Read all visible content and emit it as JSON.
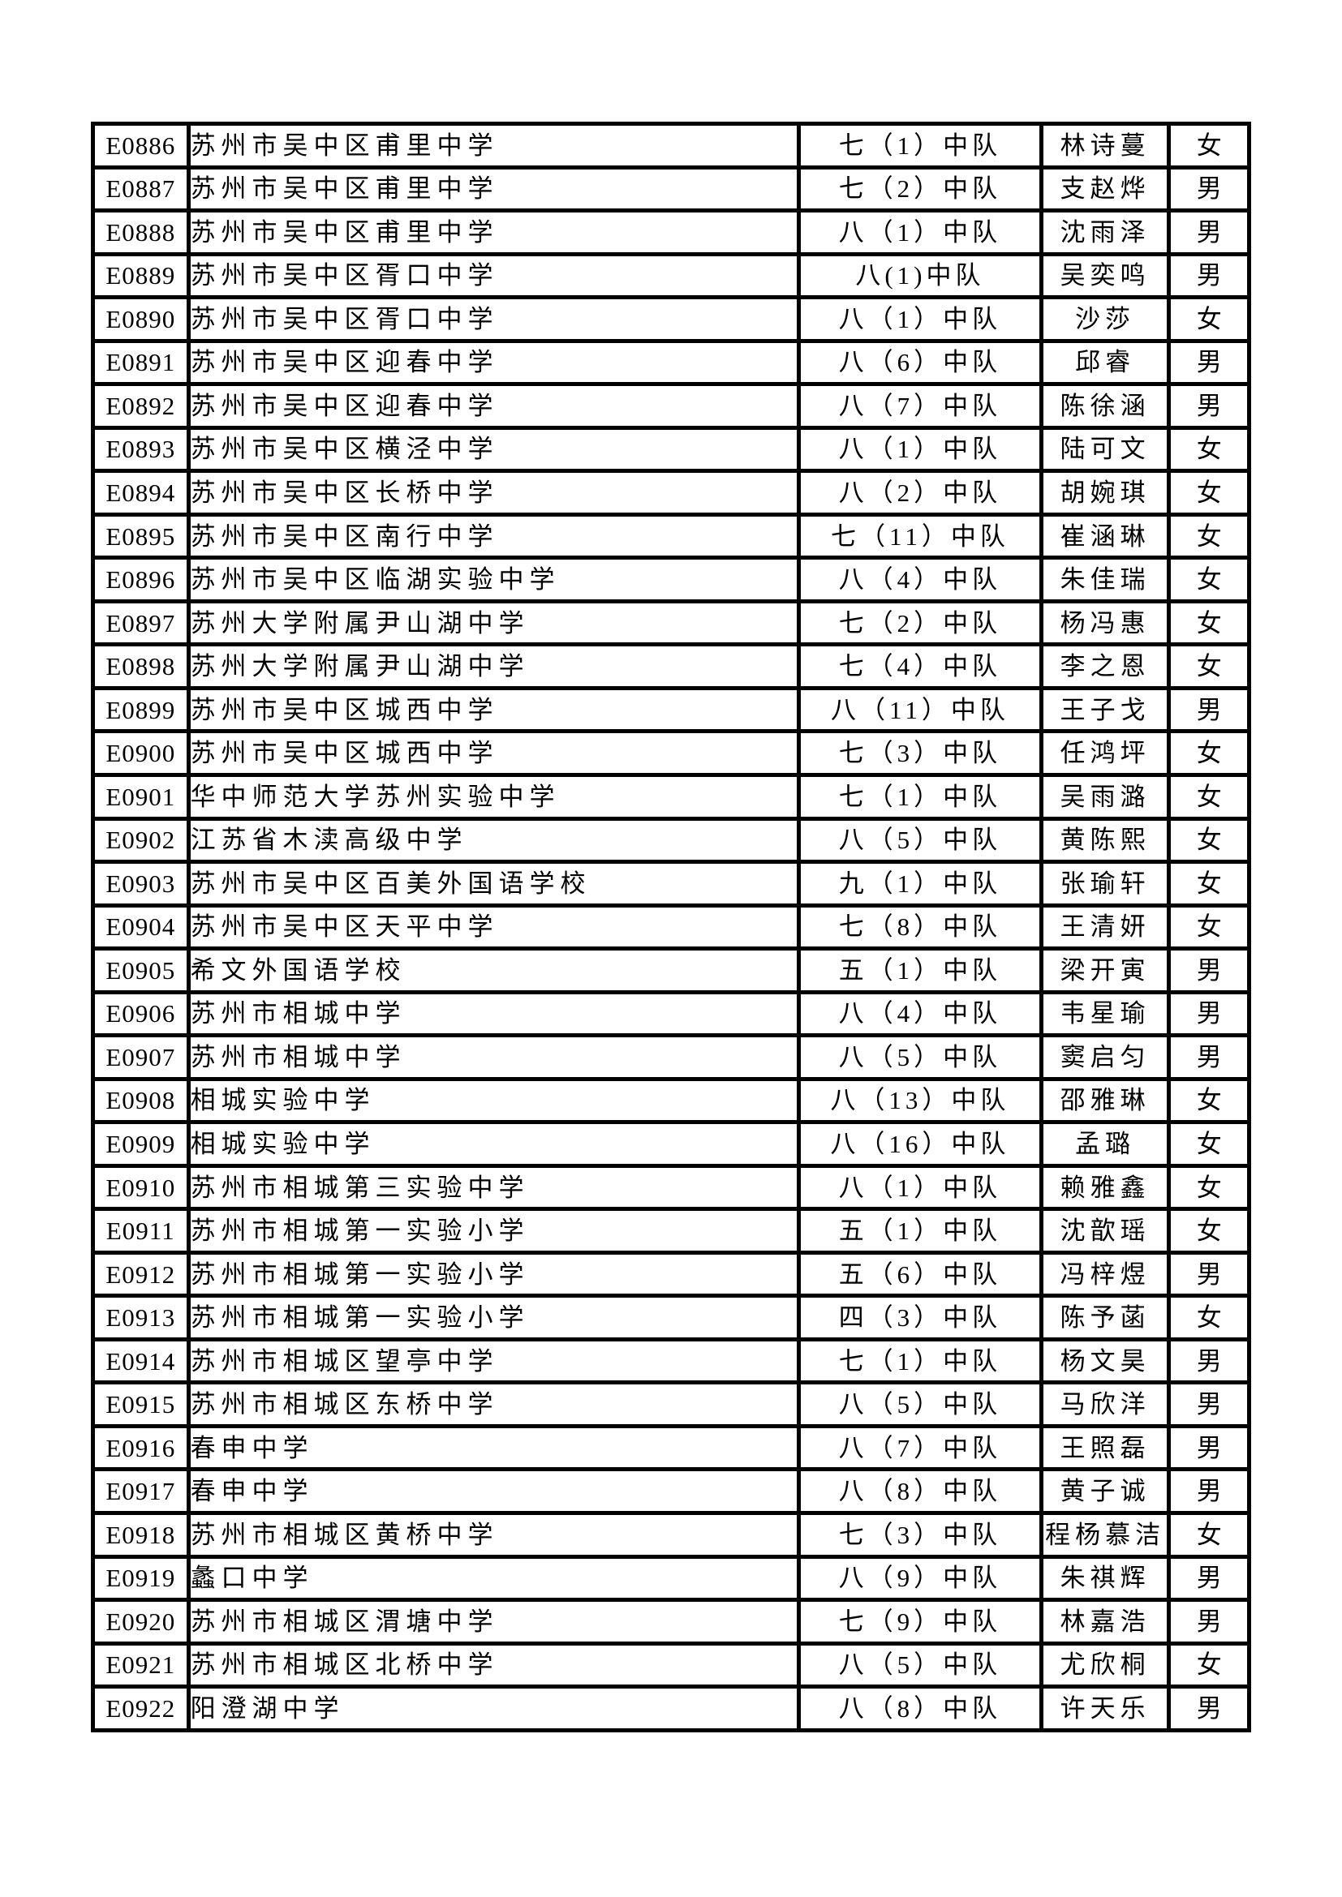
{
  "page": {
    "background": "#ffffff",
    "text_color": "#000000",
    "border_color": "#000000"
  },
  "table": {
    "rows": [
      {
        "id": "E0886",
        "school": "苏州市吴中区甫里中学",
        "class": "七（1）中队",
        "name": "林诗蔓",
        "gender": "女"
      },
      {
        "id": "E0887",
        "school": "苏州市吴中区甫里中学",
        "class": "七（2）中队",
        "name": "支赵烨",
        "gender": "男"
      },
      {
        "id": "E0888",
        "school": "苏州市吴中区甫里中学",
        "class": "八（1）中队",
        "name": "沈雨泽",
        "gender": "男"
      },
      {
        "id": "E0889",
        "school": "苏州市吴中区胥口中学",
        "class": "八(1)中队",
        "name": "吴奕鸣",
        "gender": "男"
      },
      {
        "id": "E0890",
        "school": "苏州市吴中区胥口中学",
        "class": "八（1）中队",
        "name": "沙莎",
        "gender": "女"
      },
      {
        "id": "E0891",
        "school": "苏州市吴中区迎春中学",
        "class": "八（6）中队",
        "name": "邱睿",
        "gender": "男"
      },
      {
        "id": "E0892",
        "school": "苏州市吴中区迎春中学",
        "class": "八（7）中队",
        "name": "陈徐涵",
        "gender": "男"
      },
      {
        "id": "E0893",
        "school": "苏州市吴中区横泾中学",
        "class": "八（1）中队",
        "name": "陆可文",
        "gender": "女"
      },
      {
        "id": "E0894",
        "school": "苏州市吴中区长桥中学",
        "class": "八（2）中队",
        "name": "胡婉琪",
        "gender": "女"
      },
      {
        "id": "E0895",
        "school": "苏州市吴中区南行中学",
        "class": "七（11）中队",
        "name": "崔涵琳",
        "gender": "女"
      },
      {
        "id": "E0896",
        "school": "苏州市吴中区临湖实验中学",
        "class": "八（4）中队",
        "name": "朱佳瑞",
        "gender": "女"
      },
      {
        "id": "E0897",
        "school": "苏州大学附属尹山湖中学",
        "class": "七（2）中队",
        "name": "杨冯惠",
        "gender": "女"
      },
      {
        "id": "E0898",
        "school": "苏州大学附属尹山湖中学",
        "class": "七（4）中队",
        "name": "李之恩",
        "gender": "女"
      },
      {
        "id": "E0899",
        "school": "苏州市吴中区城西中学",
        "class": "八（11）中队",
        "name": "王子戈",
        "gender": "男"
      },
      {
        "id": "E0900",
        "school": "苏州市吴中区城西中学",
        "class": "七（3）中队",
        "name": "任鸿坪",
        "gender": "女"
      },
      {
        "id": "E0901",
        "school": "华中师范大学苏州实验中学",
        "class": "七（1）中队",
        "name": "吴雨潞",
        "gender": "女"
      },
      {
        "id": "E0902",
        "school": "江苏省木渎高级中学",
        "class": "八（5）中队",
        "name": "黄陈熙",
        "gender": "女"
      },
      {
        "id": "E0903",
        "school": "苏州市吴中区百美外国语学校",
        "class": "九（1）中队",
        "name": "张瑜轩",
        "gender": "女"
      },
      {
        "id": "E0904",
        "school": "苏州市吴中区天平中学",
        "class": "七（8）中队",
        "name": "王清妍",
        "gender": "女"
      },
      {
        "id": "E0905",
        "school": "希文外国语学校",
        "class": "五（1）中队",
        "name": "梁开寅",
        "gender": "男"
      },
      {
        "id": "E0906",
        "school": "苏州市相城中学",
        "class": "八（4）中队",
        "name": "韦星瑜",
        "gender": "男"
      },
      {
        "id": "E0907",
        "school": "苏州市相城中学",
        "class": "八（5）中队",
        "name": "窦启匀",
        "gender": "男"
      },
      {
        "id": "E0908",
        "school": "相城实验中学",
        "class": "八（13）中队",
        "name": "邵雅琳",
        "gender": "女"
      },
      {
        "id": "E0909",
        "school": "相城实验中学",
        "class": "八（16）中队",
        "name": "孟璐",
        "gender": "女"
      },
      {
        "id": "E0910",
        "school": "苏州市相城第三实验中学",
        "class": "八（1）中队",
        "name": "赖雅鑫",
        "gender": "女"
      },
      {
        "id": "E0911",
        "school": "苏州市相城第一实验小学",
        "class": "五（1）中队",
        "name": "沈歆瑶",
        "gender": "女"
      },
      {
        "id": "E0912",
        "school": "苏州市相城第一实验小学",
        "class": "五（6）中队",
        "name": "冯梓煜",
        "gender": "男"
      },
      {
        "id": "E0913",
        "school": "苏州市相城第一实验小学",
        "class": "四（3）中队",
        "name": "陈予菡",
        "gender": "女"
      },
      {
        "id": "E0914",
        "school": "苏州市相城区望亭中学",
        "class": "七（1）中队",
        "name": "杨文昊",
        "gender": "男"
      },
      {
        "id": "E0915",
        "school": "苏州市相城区东桥中学",
        "class": "八（5）中队",
        "name": "马欣洋",
        "gender": "男"
      },
      {
        "id": "E0916",
        "school": "春申中学",
        "class": "八（7）中队",
        "name": "王照磊",
        "gender": "男"
      },
      {
        "id": "E0917",
        "school": "春申中学",
        "class": "八（8）中队",
        "name": "黄子诚",
        "gender": "男"
      },
      {
        "id": "E0918",
        "school": "苏州市相城区黄桥中学",
        "class": "七（3）中队",
        "name": "程杨慕洁",
        "gender": "女"
      },
      {
        "id": "E0919",
        "school": "蠡口中学",
        "class": "八（9）中队",
        "name": "朱祺辉",
        "gender": "男"
      },
      {
        "id": "E0920",
        "school": "苏州市相城区渭塘中学",
        "class": "七（9）中队",
        "name": "林嘉浩",
        "gender": "男"
      },
      {
        "id": "E0921",
        "school": "苏州市相城区北桥中学",
        "class": "八（5）中队",
        "name": "尤欣桐",
        "gender": "女"
      },
      {
        "id": "E0922",
        "school": "阳澄湖中学",
        "class": "八（8）中队",
        "name": "许天乐",
        "gender": "男"
      }
    ]
  }
}
